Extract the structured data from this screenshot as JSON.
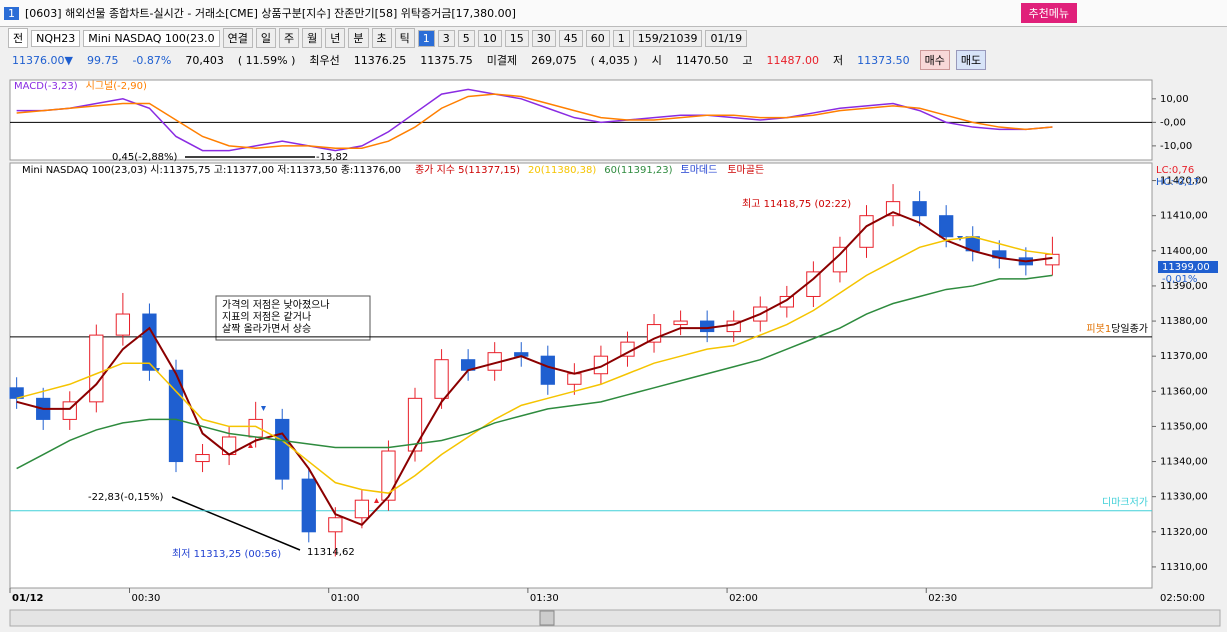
{
  "window": {
    "number": "1",
    "title": "[0603] 해외선물 종합차트-실시간 - 거래소[CME] 상품구분[지수] 잔존만기[58] 위탁증거금[17,380.00]",
    "menu_button": "추천메뉴"
  },
  "toolbar": {
    "items": [
      "전",
      "NQH23",
      "Mini NASDAQ 100(23.0",
      "연결",
      "일",
      "주",
      "월",
      "년",
      "분",
      "초",
      "틱",
      "1",
      "3",
      "5",
      "10",
      "15",
      "30",
      "45",
      "60",
      "1",
      "159/21039",
      "01/19"
    ]
  },
  "quote": {
    "items": [
      "11376.00▼",
      "99.75",
      "-0.87%",
      "70,403",
      "( 11.59% )",
      "최우선",
      "11376.25",
      "11375.75",
      "미결제",
      "269,075",
      "( 4,035 )",
      "시",
      "11470.50",
      "고",
      "11487.00",
      "저",
      "11373.50",
      "매수",
      "매도"
    ]
  },
  "chart_data": [
    {
      "type": "line",
      "x": [
        13,
        17,
        21,
        25,
        29,
        33,
        37,
        41,
        45,
        49,
        53,
        57,
        61,
        65,
        69,
        73,
        77,
        81,
        85,
        89,
        93,
        97,
        101,
        105,
        109,
        113,
        117,
        121,
        125,
        129,
        133,
        137,
        141,
        145,
        149,
        153,
        157,
        161,
        165,
        169
      ],
      "xlim": [
        12,
        184
      ],
      "ylim": [
        -16,
        18
      ],
      "yticks": [
        {
          "value": 10,
          "label": "10,00"
        },
        {
          "value": 0,
          "label": "-0,00"
        },
        {
          "value": -10,
          "label": "-10,00"
        }
      ],
      "series": [
        {
          "name": "MACD(-3,23)",
          "color": "#8a2be2",
          "values": [
            5,
            5,
            6,
            8,
            10,
            6,
            -6,
            -12,
            -12,
            -10,
            -8,
            -10,
            -12,
            -10,
            -4,
            4,
            12,
            14,
            12,
            10,
            6,
            2,
            0,
            1,
            2,
            3,
            3,
            2,
            1,
            2,
            4,
            6,
            7,
            8,
            5,
            0,
            -2,
            -3,
            -3,
            -2
          ]
        },
        {
          "name": "시그널(-2,90)",
          "color": "#ff7f00",
          "values": [
            4,
            5,
            6,
            7,
            8,
            8,
            1,
            -6,
            -10,
            -11,
            -10,
            -10,
            -11,
            -11,
            -8,
            -2,
            6,
            11,
            12,
            11,
            8,
            5,
            2,
            1,
            1,
            2,
            3,
            3,
            2,
            2,
            3,
            5,
            6,
            7,
            6,
            3,
            0,
            -2,
            -3,
            -2
          ]
        }
      ],
      "annotations": [
        "0,45(-2,88%)",
        "-13,82"
      ]
    },
    {
      "type": "candlestick",
      "x": [
        13,
        17,
        21,
        25,
        29,
        33,
        37,
        41,
        45,
        49,
        53,
        57,
        61,
        65,
        69,
        73,
        77,
        81,
        85,
        89,
        93,
        97,
        101,
        105,
        109,
        113,
        117,
        121,
        125,
        129,
        133,
        137,
        141,
        145,
        149,
        153,
        157,
        161,
        165,
        169
      ],
      "xlim": [
        12,
        184
      ],
      "ylim": [
        11304,
        11425
      ],
      "xticks": [
        {
          "value": 12,
          "label": "01/12"
        },
        {
          "value": 30,
          "label": "00:30"
        },
        {
          "value": 60,
          "label": "01:00"
        },
        {
          "value": 90,
          "label": "01:30"
        },
        {
          "value": 120,
          "label": "02:00"
        },
        {
          "value": 150,
          "label": "02:30"
        }
      ],
      "yticks": [
        {
          "value": 11310,
          "label": "11310,00"
        },
        {
          "value": 11320,
          "label": "11320,00"
        },
        {
          "value": 11330,
          "label": "11330,00"
        },
        {
          "value": 11340,
          "label": "11340,00"
        },
        {
          "value": 11350,
          "label": "11350,00"
        },
        {
          "value": 11360,
          "label": "11360,00"
        },
        {
          "value": 11370,
          "label": "11370,00"
        },
        {
          "value": 11380,
          "label": "11380,00"
        },
        {
          "value": 11390,
          "label": "11390,00"
        },
        {
          "value": 11400,
          "label": "11400,00"
        },
        {
          "value": 11410,
          "label": "11410,00"
        },
        {
          "value": 11420,
          "label": "11420,00"
        }
      ],
      "open": [
        11361,
        11358,
        11352,
        11357,
        11376,
        11382,
        11366,
        11340,
        11342,
        11347,
        11352,
        11335,
        11320,
        11324,
        11329,
        11343,
        11358,
        11369,
        11366,
        11371,
        11370,
        11362,
        11365,
        11370,
        11374,
        11379,
        11380,
        11377,
        11380,
        11384,
        11387,
        11394,
        11401,
        11410,
        11414,
        11410,
        11404,
        11400,
        11398,
        11396
      ],
      "high": [
        11364,
        11361,
        11360,
        11379,
        11388,
        11385,
        11369,
        11345,
        11350,
        11357,
        11355,
        11338,
        11327,
        11332,
        11346,
        11361,
        11372,
        11372,
        11374,
        11374,
        11373,
        11368,
        11373,
        11377,
        11382,
        11383,
        11383,
        11383,
        11387,
        11390,
        11397,
        11404,
        11413,
        11419,
        11417,
        11413,
        11407,
        11403,
        11401,
        11404
      ],
      "low": [
        11355,
        11349,
        11349,
        11354,
        11373,
        11363,
        11337,
        11337,
        11339,
        11344,
        11332,
        11317,
        11313,
        11321,
        11326,
        11340,
        11355,
        11363,
        11363,
        11367,
        11359,
        11359,
        11362,
        11367,
        11371,
        11376,
        11374,
        11374,
        11377,
        11381,
        11384,
        11391,
        11398,
        11407,
        11407,
        11401,
        11397,
        11395,
        11393,
        11393
      ],
      "close": [
        11358,
        11352,
        11357,
        11376,
        11382,
        11366,
        11340,
        11342,
        11347,
        11352,
        11335,
        11320,
        11324,
        11329,
        11343,
        11358,
        11369,
        11366,
        11371,
        11370,
        11362,
        11365,
        11370,
        11374,
        11379,
        11380,
        11377,
        11380,
        11384,
        11387,
        11394,
        11401,
        11410,
        11414,
        11410,
        11404,
        11400,
        11398,
        11396,
        11399
      ],
      "up_color": "#e8202a",
      "down_color": "#1f5fd0",
      "series": [
        {
          "name": "종가 지수 5(11377,15)",
          "color": "#8b0000",
          "values": [
            11357,
            11355,
            11355,
            11362,
            11372,
            11378,
            11365,
            11348,
            11342,
            11346,
            11348,
            11338,
            11325,
            11322,
            11330,
            11344,
            11357,
            11366,
            11368,
            11370,
            11367,
            11365,
            11367,
            11371,
            11375,
            11378,
            11378,
            11379,
            11382,
            11386,
            11392,
            11399,
            11407,
            11411,
            11408,
            11403,
            11400,
            11398,
            11397,
            11398
          ]
        },
        {
          "name": "20(11380,38)",
          "color": "#f5c400",
          "values": [
            11358,
            11360,
            11362,
            11365,
            11368,
            11368,
            11360,
            11352,
            11350,
            11350,
            11346,
            11340,
            11334,
            11332,
            11331,
            11336,
            11342,
            11347,
            11352,
            11356,
            11358,
            11360,
            11362,
            11365,
            11368,
            11370,
            11372,
            11373,
            11376,
            11379,
            11383,
            11388,
            11393,
            11397,
            11401,
            11403,
            11404,
            11402,
            11400,
            11399
          ]
        },
        {
          "name": "60(11391,23)",
          "color": "#2e8b3e",
          "values": [
            11338,
            11342,
            11346,
            11349,
            11351,
            11352,
            11352,
            11350,
            11348,
            11347,
            11346,
            11345,
            11344,
            11344,
            11344,
            11345,
            11346,
            11348,
            11351,
            11353,
            11355,
            11356,
            11357,
            11359,
            11361,
            11363,
            11365,
            11367,
            11369,
            11372,
            11375,
            11378,
            11382,
            11385,
            11387,
            11389,
            11390,
            11392,
            11392,
            11393
          ]
        }
      ],
      "info": "Mini NASDAQ 100(23,03) 시:11375,75 고:11377,00 저:11373,50 종:11376,00",
      "signals": [
        "토마데드",
        "토마골든"
      ],
      "corner": [
        "LC:0,76",
        "HC:-0,17"
      ],
      "hlines": [
        {
          "value": 11375.5,
          "labels": [
            "피봇1",
            "당일종가"
          ],
          "color": "#000000"
        },
        {
          "value": 11326,
          "labels": [
            "디마크저가"
          ],
          "color": "#40d0d8"
        }
      ],
      "annotations": [
        "최고 11418,75 (02:22)",
        "최저 11313,25 (00:56)",
        "11314,62",
        "-22,83(-0,15%)"
      ],
      "note": [
        "가격의 저점은 낮아졌으나",
        "지표의 저점은 같거나",
        "살짝 올라가면서 상승"
      ],
      "last_label": [
        "11399,00",
        "-0,01%"
      ],
      "clock": "02:50:00"
    }
  ]
}
